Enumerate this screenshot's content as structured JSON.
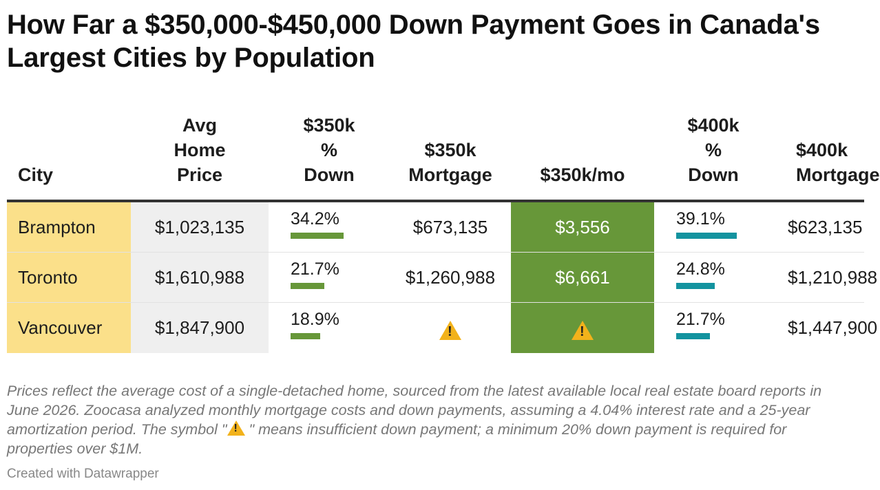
{
  "title": "How Far a $350,000-$450,000 Down Payment Goes in Canada's Largest Cities by Population",
  "notes": {
    "text_before": "Prices reflect the average cost of a single-detached home, sourced from the latest available local real estate board reports in June 2026. Zoocasa analyzed monthly mortgage costs and down payments, assuming a 4.04% interest rate and a 25-year amortization period. The symbol \"",
    "text_after": " \" means insufficient down payment; a minimum 20% down payment is required for properties over $1M."
  },
  "credit": "Created with Datawrapper",
  "colors": {
    "city_bg": "#fbe08a",
    "price_bg": "#efefef",
    "monthly_bg": "#679739",
    "bar_350": "#679739",
    "bar_400": "#13939f",
    "warning": "#f2b21b"
  },
  "chart_data": {
    "type": "table",
    "columns": [
      "City",
      "Avg\nHome\nPrice",
      "$350k\n%\nDown",
      "$350k\nMortgage",
      "$350k/mo",
      "$400k\n%\nDown",
      "$400k\nMortgage"
    ],
    "rows": [
      {
        "city": "Brampton",
        "price": "$1,023,135",
        "pct350": "34.2%",
        "pct350_value": 34.2,
        "mort350": "$673,135",
        "mo350": "$3,556",
        "pct400": "39.1%",
        "pct400_value": 39.1,
        "mort400": "$623,135"
      },
      {
        "city": "Toronto",
        "price": "$1,610,988",
        "pct350": "21.7%",
        "pct350_value": 21.7,
        "mort350": "$1,260,988",
        "mo350": "$6,661",
        "pct400": "24.8%",
        "pct400_value": 24.8,
        "mort400": "$1,210,988"
      },
      {
        "city": "Vancouver",
        "price": "$1,847,900",
        "pct350": "18.9%",
        "pct350_value": 18.9,
        "mort350": "warning-icon",
        "mo350": "warning-icon",
        "pct400": "21.7%",
        "pct400_value": 21.7,
        "mort400": "$1,447,900"
      }
    ],
    "bar_scale_max": 39.1
  }
}
